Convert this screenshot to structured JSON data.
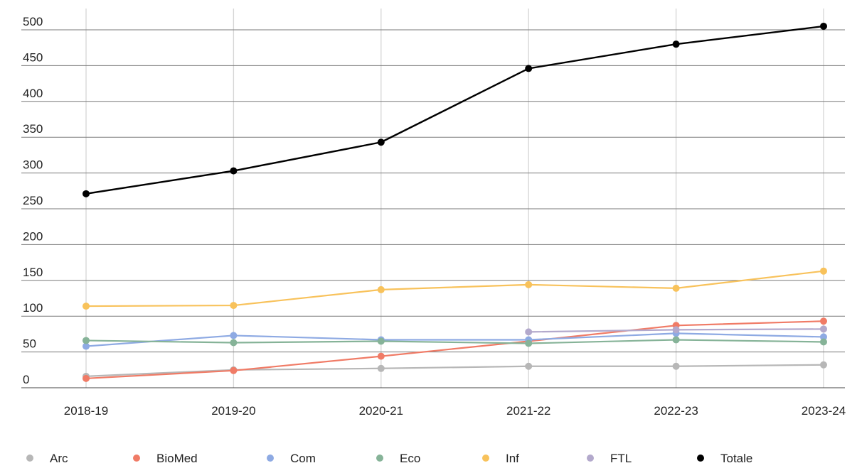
{
  "chart_data": {
    "type": "line",
    "title": "",
    "xlabel": "",
    "ylabel": "",
    "categories": [
      "2018-19",
      "2019-20",
      "2020-21",
      "2021-22",
      "2022-23",
      "2023-24"
    ],
    "ylim": [
      0,
      500
    ],
    "yticks": [
      0,
      50,
      100,
      150,
      200,
      250,
      300,
      350,
      400,
      450,
      500
    ],
    "grid": true,
    "legend_position": "bottom",
    "series": [
      {
        "name": "Arc",
        "color": "#b7b7b7",
        "values": [
          16,
          25,
          27,
          30,
          30,
          32
        ]
      },
      {
        "name": "BioMed",
        "color": "#f07b66",
        "values": [
          13,
          24,
          44,
          65,
          87,
          93
        ]
      },
      {
        "name": "Com",
        "color": "#8eaae3",
        "values": [
          58,
          73,
          67,
          67,
          76,
          71
        ]
      },
      {
        "name": "Eco",
        "color": "#86b398",
        "values": [
          66,
          63,
          65,
          62,
          67,
          64
        ]
      },
      {
        "name": "Inf",
        "color": "#f8c25b",
        "values": [
          114,
          115,
          137,
          144,
          139,
          163
        ]
      },
      {
        "name": "FTL",
        "color": "#b3a9cc",
        "values": [
          null,
          null,
          null,
          78,
          81,
          82
        ]
      },
      {
        "name": "Totale",
        "color": "#000000",
        "values": [
          271,
          303,
          343,
          446,
          480,
          505
        ]
      }
    ]
  }
}
